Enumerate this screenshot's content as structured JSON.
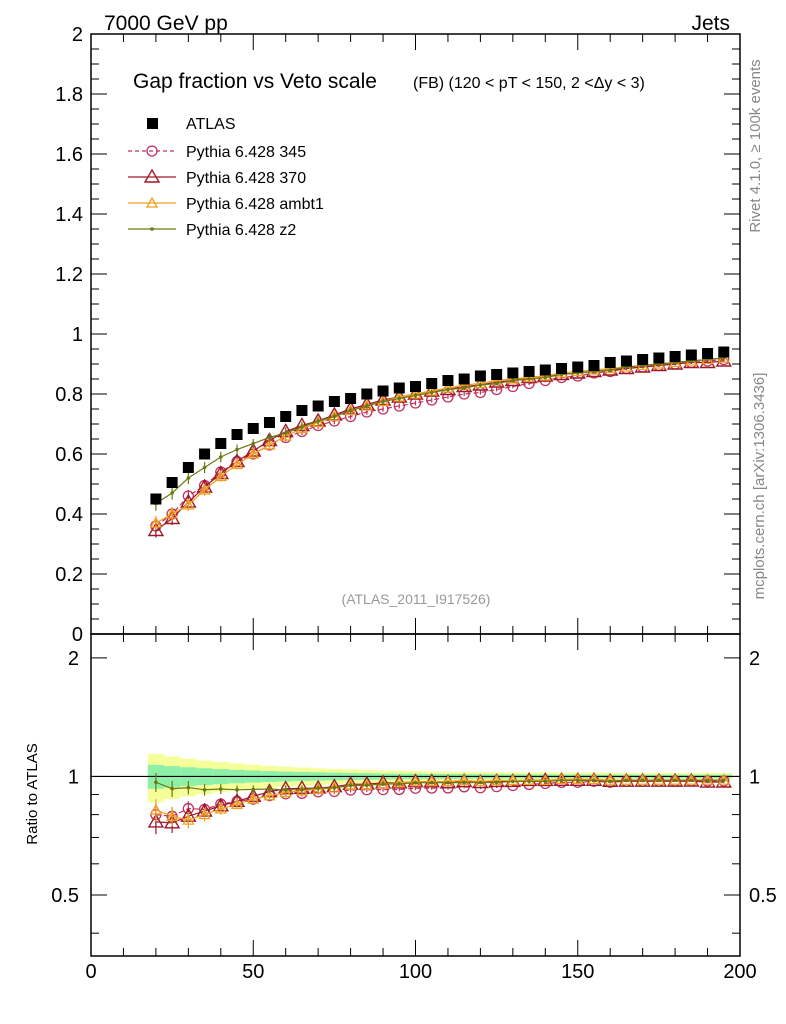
{
  "header": {
    "left": "7000 GeV pp",
    "right": "Jets"
  },
  "side_labels": {
    "rivet": "Rivet 4.1.0, ≥ 100k events",
    "mcplots": "mcplots.cern.ch [arXiv:1306.3436]"
  },
  "chart_data": {
    "type": "scatter",
    "title": "Gap fraction vs Veto scale",
    "subtitle": "(FB) (120 < pT < 150, 2 <Δy < 3)",
    "analysis_tag": "(ATLAS_2011_I917526)",
    "xlim": [
      0,
      200
    ],
    "ylim": [
      0,
      2
    ],
    "x_ticks": [
      0,
      50,
      100,
      150,
      200
    ],
    "y_ticks": [
      0,
      0.2,
      0.4,
      0.6,
      0.8,
      1,
      1.2,
      1.4,
      1.6,
      1.8,
      2
    ],
    "y_tick_labels": [
      "0",
      "0.2",
      "0.4",
      "0.6",
      "0.8",
      "1",
      "1.2",
      "1.4",
      "1.6",
      "1.8",
      "2"
    ],
    "ratio": {
      "ylabel": "Ratio to ATLAS",
      "ylim": [
        0.35,
        2.3
      ],
      "log": true,
      "ticks": [
        0.5,
        1,
        2
      ],
      "tick_labels": [
        "0.5",
        "1",
        "2"
      ]
    },
    "x": [
      20,
      25,
      30,
      35,
      40,
      45,
      50,
      55,
      60,
      65,
      70,
      75,
      80,
      85,
      90,
      95,
      100,
      105,
      110,
      115,
      120,
      125,
      130,
      135,
      140,
      145,
      150,
      155,
      160,
      165,
      170,
      175,
      180,
      185,
      190,
      195
    ],
    "data_series": {
      "name": "ATLAS",
      "color": "#000000",
      "values": [
        0.45,
        0.505,
        0.555,
        0.6,
        0.635,
        0.665,
        0.685,
        0.705,
        0.725,
        0.745,
        0.76,
        0.775,
        0.785,
        0.8,
        0.81,
        0.82,
        0.825,
        0.835,
        0.845,
        0.85,
        0.86,
        0.865,
        0.87,
        0.875,
        0.88,
        0.885,
        0.89,
        0.895,
        0.905,
        0.91,
        0.915,
        0.92,
        0.925,
        0.93,
        0.935,
        0.94
      ]
    },
    "series": [
      {
        "name": "Pythia 6.428 345",
        "color": "#c0305c",
        "dashed": true,
        "marker": "circle",
        "values": [
          0.36,
          0.4,
          0.46,
          0.495,
          0.54,
          0.575,
          0.6,
          0.63,
          0.655,
          0.675,
          0.695,
          0.71,
          0.725,
          0.74,
          0.75,
          0.76,
          0.77,
          0.78,
          0.79,
          0.8,
          0.805,
          0.815,
          0.825,
          0.835,
          0.845,
          0.855,
          0.86,
          0.87,
          0.875,
          0.885,
          0.89,
          0.895,
          0.9,
          0.905,
          0.91,
          0.915
        ]
      },
      {
        "name": "Pythia 6.428 370",
        "color": "#9e1a2a",
        "dashed": false,
        "marker": "triangle",
        "values": [
          0.345,
          0.385,
          0.44,
          0.49,
          0.535,
          0.575,
          0.61,
          0.645,
          0.675,
          0.695,
          0.71,
          0.73,
          0.75,
          0.765,
          0.78,
          0.79,
          0.8,
          0.81,
          0.815,
          0.825,
          0.83,
          0.84,
          0.845,
          0.855,
          0.86,
          0.865,
          0.87,
          0.875,
          0.88,
          0.885,
          0.89,
          0.895,
          0.9,
          0.905,
          0.905,
          0.91
        ]
      },
      {
        "name": "Pythia 6.428 ambt1",
        "color": "#f0a020",
        "dashed": false,
        "marker": "triangle-small",
        "values": [
          0.37,
          0.4,
          0.43,
          0.48,
          0.525,
          0.565,
          0.6,
          0.63,
          0.66,
          0.685,
          0.705,
          0.725,
          0.745,
          0.76,
          0.775,
          0.79,
          0.8,
          0.81,
          0.82,
          0.83,
          0.835,
          0.845,
          0.85,
          0.855,
          0.86,
          0.87,
          0.875,
          0.88,
          0.885,
          0.89,
          0.895,
          0.9,
          0.905,
          0.91,
          0.915,
          0.92
        ]
      },
      {
        "name": "Pythia 6.428 z2",
        "color": "#6b7a10",
        "dashed": false,
        "marker": "dot",
        "values": [
          0.435,
          0.47,
          0.52,
          0.555,
          0.59,
          0.615,
          0.635,
          0.655,
          0.67,
          0.69,
          0.71,
          0.725,
          0.745,
          0.76,
          0.775,
          0.785,
          0.795,
          0.805,
          0.815,
          0.82,
          0.83,
          0.835,
          0.845,
          0.85,
          0.855,
          0.865,
          0.87,
          0.875,
          0.88,
          0.89,
          0.895,
          0.9,
          0.905,
          0.91,
          0.915,
          0.92
        ]
      }
    ]
  }
}
